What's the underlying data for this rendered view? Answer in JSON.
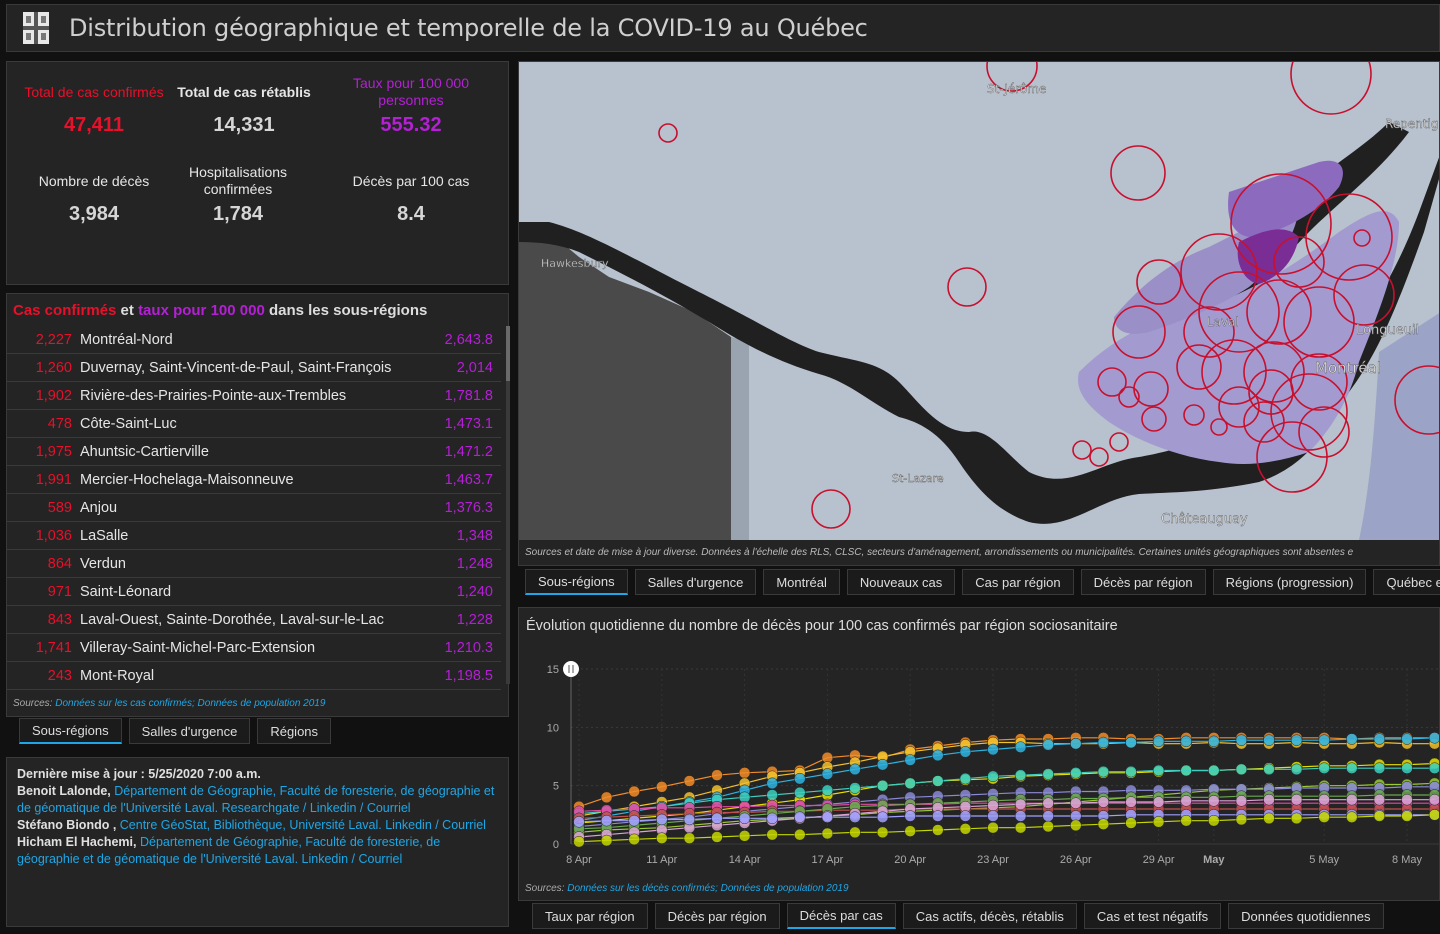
{
  "header": {
    "title": "Distribution géographique et temporelle de la COVID-19 au Québec"
  },
  "stats": [
    {
      "label": "Total de cas confirmés",
      "value": "47,411",
      "color": "red"
    },
    {
      "label": "Total de cas rétablis",
      "value": "14,331",
      "color": "grey"
    },
    {
      "label": "Taux pour 100 000 personnes",
      "value": "555.32",
      "color": "purple"
    },
    {
      "label": "Nombre de décès",
      "value": "3,984",
      "color": "grey"
    },
    {
      "label": "Hospitalisations confirmées",
      "value": "1,784",
      "color": "grey"
    },
    {
      "label": "Décès par 100 cas",
      "value": "8.4",
      "color": "grey"
    }
  ],
  "list": {
    "title_part1": "Cas confirmés",
    "title_part2": " et ",
    "title_part3": "taux pour 100 000",
    "title_part4": " dans les sous-régions",
    "rows": [
      {
        "count": "2,227",
        "name": "Montréal-Nord",
        "rate": "2,643.8"
      },
      {
        "count": "1,260",
        "name": "Duvernay, Saint-Vincent-de-Paul, Saint-François",
        "rate": "2,014"
      },
      {
        "count": "1,902",
        "name": "Rivière-des-Prairies-Pointe-aux-Trembles",
        "rate": "1,781.8"
      },
      {
        "count": "478",
        "name": "Côte-Saint-Luc",
        "rate": "1,473.1"
      },
      {
        "count": "1,975",
        "name": "Ahuntsic-Cartierville",
        "rate": "1,471.2"
      },
      {
        "count": "1,991",
        "name": "Mercier-Hochelaga-Maisonneuve",
        "rate": "1,463.7"
      },
      {
        "count": "589",
        "name": "Anjou",
        "rate": "1,376.3"
      },
      {
        "count": "1,036",
        "name": "LaSalle",
        "rate": "1,348"
      },
      {
        "count": "864",
        "name": "Verdun",
        "rate": "1,248"
      },
      {
        "count": "971",
        "name": "Saint-Léonard",
        "rate": "1,240"
      },
      {
        "count": "843",
        "name": "Laval-Ouest, Sainte-Dorothée, Laval-sur-le-Lac",
        "rate": "1,228"
      },
      {
        "count": "1,741",
        "name": "Villeray-Saint-Michel-Parc-Extension",
        "rate": "1,210.3"
      },
      {
        "count": "243",
        "name": "Mont-Royal",
        "rate": "1,198.5"
      }
    ],
    "sources_prefix": "Sources: ",
    "sources_link": "Données sur les cas confirmés; Données de population 2019"
  },
  "left_tabs": [
    "Sous-régions",
    "Salles d'urgence",
    "Régions"
  ],
  "credits": {
    "updated": "Dernière mise à jour : 5/25/2020 7:00 a.m.",
    "p1_name": "Benoit Lalonde, ",
    "p1_link": "Département de Géographie, Faculté de foresterie, de géographie et de géomatique de l'Université Laval. Researchgate / Linkedin / Courriel",
    "p2_name": "Stéfano Biondo , ",
    "p2_link": "Centre GéoStat, Bibliothèque, Université Laval. Linkedin / Courriel",
    "p3_name": "Hicham El Hachemi, ",
    "p3_link": "Département de Géographie, Faculté de foresterie, de géographie et de géomatique de l'Université Laval. Linkedin / Courriel"
  },
  "map": {
    "labels": {
      "st_jerome": "St-Jérôme",
      "repentigny": "Repentig",
      "hawkesbury": "Hawkesbury",
      "laval": "Laval",
      "longueuil": "Longueuil",
      "montreal": "Montréal",
      "st_lazare": "St-Lazare",
      "chateauguay": "Châteauguay"
    },
    "note": "Sources et date de mise à jour diverse. Données à l'échelle des RLS, CLSC, secteurs d'aménagement, arrondissements ou municipalités. Certaines unités géographiques sont absentes e"
  },
  "map_tabs": [
    "Sous-régions",
    "Salles d'urgence",
    "Montréal",
    "Nouveaux cas",
    "Cas par région",
    "Décès par région",
    "Régions (progression)",
    "Québec et le Mo"
  ],
  "chart_title": "Évolution quotidienne du nombre de décès pour 100 cas confirmés par région sociosanitaire",
  "chart_sources_prefix": "Sources: ",
  "chart_sources_link": "Données sur les décès confirmés; Données de population 2019",
  "bottom_tabs": [
    "Taux par région",
    "Décès par région",
    "Décès par cas",
    "Cas actifs, décès, rétablis",
    "Cas et test négatifs",
    "Données quotidiennes"
  ],
  "chart_data": {
    "type": "line",
    "x": [
      "8 Apr",
      "9 Apr",
      "10 Apr",
      "11 Apr",
      "12 Apr",
      "13 Apr",
      "14 Apr",
      "15 Apr",
      "16 Apr",
      "17 Apr",
      "18 Apr",
      "19 Apr",
      "20 Apr",
      "21 Apr",
      "22 Apr",
      "23 Apr",
      "24 Apr",
      "25 Apr",
      "26 Apr",
      "27 Apr",
      "28 Apr",
      "29 Apr",
      "30 Apr",
      "May",
      "2 May",
      "3 May",
      "4 May",
      "5 May",
      "6 May",
      "7 May",
      "8 May",
      "9 May"
    ],
    "x_tick_labels": [
      "8 Apr",
      "11 Apr",
      "14 Apr",
      "17 Apr",
      "20 Apr",
      "23 Apr",
      "26 Apr",
      "29 Apr",
      "May",
      "5 May",
      "8 May"
    ],
    "ylim": [
      0,
      15
    ],
    "y_ticks": [
      0,
      5,
      10,
      15
    ],
    "series": [
      {
        "color": "#f28c28",
        "values": [
          3.2,
          4.0,
          4.5,
          4.9,
          5.4,
          5.9,
          6.1,
          6.2,
          6.3,
          7.4,
          7.6,
          7.4,
          8.1,
          8.4,
          8.7,
          8.9,
          9.0,
          9.0,
          9.1,
          9.1,
          9.0,
          9.0,
          9.1,
          9.1,
          9.1,
          9.1,
          9.1,
          9.1,
          9.0,
          9.1,
          9.1,
          9.1
        ]
      },
      {
        "color": "#f2c12e",
        "values": [
          2.4,
          2.8,
          3.2,
          3.6,
          4.0,
          4.6,
          5.2,
          5.8,
          6.1,
          6.6,
          7.0,
          7.5,
          7.9,
          8.2,
          8.5,
          8.7,
          8.7,
          8.6,
          8.6,
          8.6,
          8.7,
          8.6,
          8.6,
          8.7,
          8.6,
          8.6,
          8.7,
          8.6,
          8.6,
          8.7,
          8.6,
          8.6
        ]
      },
      {
        "color": "#2fb3e0",
        "values": [
          2.0,
          2.4,
          2.8,
          3.2,
          3.6,
          4.0,
          4.6,
          5.2,
          5.6,
          6.0,
          6.4,
          6.8,
          7.2,
          7.6,
          7.9,
          8.1,
          8.3,
          8.5,
          8.6,
          8.7,
          8.7,
          8.8,
          8.8,
          8.8,
          8.9,
          8.9,
          8.9,
          8.9,
          9.0,
          9.0,
          9.0,
          9.1
        ]
      },
      {
        "color": "#e6e000",
        "values": [
          1.8,
          2.0,
          2.2,
          2.4,
          2.6,
          2.9,
          3.2,
          3.5,
          3.8,
          4.2,
          4.6,
          5.0,
          5.2,
          5.4,
          5.5,
          5.6,
          5.8,
          5.9,
          6.0,
          6.1,
          6.1,
          6.2,
          6.3,
          6.3,
          6.4,
          6.5,
          6.6,
          6.7,
          6.7,
          6.8,
          6.8,
          6.9
        ]
      },
      {
        "color": "#9acd32",
        "values": [
          1.0,
          1.2,
          1.3,
          1.4,
          1.6,
          1.8,
          2.0,
          2.1,
          2.2,
          2.4,
          2.5,
          2.7,
          2.8,
          2.9,
          3.0,
          3.1,
          3.2,
          3.4,
          3.6,
          3.8,
          4.0,
          4.2,
          4.4,
          4.6,
          4.7,
          4.8,
          4.9,
          5.0,
          5.0,
          5.1,
          5.1,
          5.2
        ]
      },
      {
        "color": "#8a8ad6",
        "values": [
          1.5,
          1.7,
          1.9,
          2.1,
          2.3,
          2.6,
          2.8,
          3.0,
          3.2,
          3.4,
          3.6,
          3.8,
          4.0,
          4.1,
          4.2,
          4.3,
          4.4,
          4.4,
          4.5,
          4.5,
          4.6,
          4.6,
          4.6,
          4.7,
          4.7,
          4.7,
          4.8,
          4.8,
          4.8,
          4.8,
          4.9,
          4.9
        ]
      },
      {
        "color": "#3ccfc0",
        "values": [
          2.6,
          2.8,
          3.0,
          3.2,
          3.5,
          3.8,
          4.0,
          4.2,
          4.4,
          4.6,
          4.8,
          5.0,
          5.2,
          5.4,
          5.6,
          5.8,
          5.9,
          6.0,
          6.1,
          6.2,
          6.2,
          6.3,
          6.3,
          6.3,
          6.4,
          6.4,
          6.4,
          6.5,
          6.5,
          6.5,
          6.5,
          6.5
        ]
      },
      {
        "color": "#e24aa6",
        "values": [
          2.8,
          2.9,
          3.0,
          3.1,
          3.1,
          3.2,
          3.2,
          3.3,
          3.3,
          3.3,
          3.4,
          3.4,
          3.4,
          3.4,
          3.5,
          3.5,
          3.5,
          3.5,
          3.5,
          3.5,
          3.5,
          3.5,
          3.5,
          3.5,
          3.5,
          3.5,
          3.5,
          3.5,
          3.5,
          3.5,
          3.5,
          3.5
        ]
      },
      {
        "color": "#c0504d",
        "values": [
          2.2,
          2.3,
          2.4,
          2.5,
          2.6,
          2.7,
          2.7,
          2.8,
          2.8,
          2.9,
          2.9,
          2.9,
          3.0,
          3.0,
          3.0,
          3.0,
          3.0,
          3.0,
          3.0,
          3.0,
          3.0,
          3.0,
          3.0,
          3.0,
          3.0,
          3.0,
          3.0,
          3.0,
          3.0,
          3.0,
          3.0,
          3.0
        ]
      },
      {
        "color": "#6aa84f",
        "values": [
          1.3,
          1.4,
          1.6,
          1.8,
          2.0,
          2.2,
          2.4,
          2.6,
          2.8,
          3.0,
          3.2,
          3.3,
          3.4,
          3.5,
          3.6,
          3.7,
          3.8,
          3.8,
          3.9,
          3.9,
          4.0,
          4.0,
          4.0,
          4.0,
          4.1,
          4.1,
          4.1,
          4.1,
          4.1,
          4.2,
          4.2,
          4.2
        ]
      },
      {
        "color": "#d9a3d6",
        "values": [
          0.6,
          0.8,
          1.0,
          1.2,
          1.4,
          1.6,
          1.8,
          2.0,
          2.2,
          2.4,
          2.6,
          2.8,
          3.0,
          3.1,
          3.2,
          3.3,
          3.4,
          3.5,
          3.5,
          3.6,
          3.6,
          3.6,
          3.7,
          3.7,
          3.7,
          3.8,
          3.8,
          3.8,
          3.8,
          3.8,
          3.8,
          3.8
        ]
      },
      {
        "color": "#a0a0ff",
        "values": [
          1.9,
          2.0,
          2.0,
          2.1,
          2.1,
          2.2,
          2.2,
          2.2,
          2.3,
          2.3,
          2.3,
          2.3,
          2.4,
          2.4,
          2.4,
          2.4,
          2.4,
          2.4,
          2.4,
          2.4,
          2.5,
          2.5,
          2.5,
          2.5,
          2.5,
          2.5,
          2.5,
          2.5,
          2.5,
          2.5,
          2.5,
          2.5
        ]
      },
      {
        "color": "#c4d600",
        "values": [
          0.2,
          0.3,
          0.4,
          0.5,
          0.5,
          0.6,
          0.7,
          0.8,
          0.8,
          0.9,
          1.0,
          1.0,
          1.1,
          1.2,
          1.3,
          1.4,
          1.4,
          1.5,
          1.6,
          1.7,
          1.8,
          1.9,
          2.0,
          2.0,
          2.1,
          2.2,
          2.2,
          2.3,
          2.3,
          2.4,
          2.4,
          2.5
        ]
      }
    ]
  }
}
